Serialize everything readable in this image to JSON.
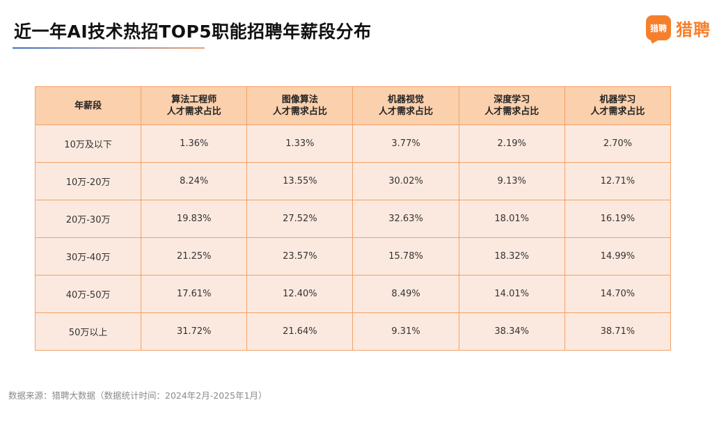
{
  "title": "近一年AI技术热招TOP5职能招聘年薪段分布",
  "logo": {
    "badge_text": "猎聘",
    "name": "猎聘",
    "brand_color": "#f57f2b"
  },
  "colors": {
    "header_bg": "#fbd0ad",
    "cell_bg": "#fbe9df",
    "border": "#f3a066"
  },
  "chart_data": {
    "type": "table",
    "title": "近一年AI技术热招TOP5职能招聘年薪段分布",
    "columns": [
      {
        "label": "年薪段",
        "sublabel": ""
      },
      {
        "label": "算法工程师",
        "sublabel": "人才需求占比"
      },
      {
        "label": "图像算法",
        "sublabel": "人才需求占比"
      },
      {
        "label": "机器视觉",
        "sublabel": "人才需求占比"
      },
      {
        "label": "深度学习",
        "sublabel": "人才需求占比"
      },
      {
        "label": "机器学习",
        "sublabel": "人才需求占比"
      }
    ],
    "rows": [
      [
        "10万及以下",
        "1.36%",
        "1.33%",
        "3.77%",
        "2.19%",
        "2.70%"
      ],
      [
        "10万-20万",
        "8.24%",
        "13.55%",
        "30.02%",
        "9.13%",
        "12.71%"
      ],
      [
        "20万-30万",
        "19.83%",
        "27.52%",
        "32.63%",
        "18.01%",
        "16.19%"
      ],
      [
        "30万-40万",
        "21.25%",
        "23.57%",
        "15.78%",
        "18.32%",
        "14.99%"
      ],
      [
        "40万-50万",
        "17.61%",
        "12.40%",
        "8.49%",
        "14.01%",
        "14.70%"
      ],
      [
        "50万以上",
        "31.72%",
        "21.64%",
        "9.31%",
        "38.34%",
        "38.71%"
      ]
    ]
  },
  "source": "数据来源：猎聘大数据（数据统计时间：2024年2月-2025年1月）"
}
